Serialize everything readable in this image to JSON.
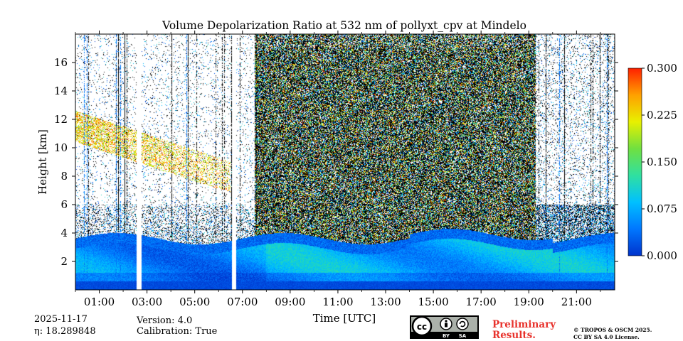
{
  "chart_data": {
    "type": "heatmap",
    "title": "Volume Depolarization Ratio at 532 nm of pollyxt_cpv at Mindelo",
    "xlabel": "Time [UTC]",
    "ylabel": "Height [km]",
    "xlim_hours": [
      0,
      22.6
    ],
    "ylim_km": [
      0,
      18
    ],
    "x_ticks": [
      {
        "h": 1,
        "label": "01:00"
      },
      {
        "h": 3,
        "label": "03:00"
      },
      {
        "h": 5,
        "label": "05:00"
      },
      {
        "h": 7,
        "label": "07:00"
      },
      {
        "h": 9,
        "label": "09:00"
      },
      {
        "h": 11,
        "label": "11:00"
      },
      {
        "h": 13,
        "label": "13:00"
      },
      {
        "h": 15,
        "label": "15:00"
      },
      {
        "h": 17,
        "label": "17:00"
      },
      {
        "h": 19,
        "label": "19:00"
      },
      {
        "h": 21,
        "label": "21:00"
      }
    ],
    "y_ticks": [
      {
        "v": 2,
        "label": "2"
      },
      {
        "v": 4,
        "label": "4"
      },
      {
        "v": 6,
        "label": "6"
      },
      {
        "v": 8,
        "label": "8"
      },
      {
        "v": 10,
        "label": "10"
      },
      {
        "v": 12,
        "label": "12"
      },
      {
        "v": 14,
        "label": "14"
      },
      {
        "v": 16,
        "label": "16"
      }
    ],
    "colorbar": {
      "min": 0.0,
      "max": 0.3,
      "ticks": [
        "0.000",
        "0.075",
        "0.150",
        "0.225",
        "0.300"
      ],
      "colors": [
        "#0033cc",
        "#0077ff",
        "#00c0ff",
        "#30e0a0",
        "#70e040",
        "#e8f000",
        "#ffa000",
        "#ff2000"
      ]
    },
    "data_gaps_hours": [
      [
        2.55,
        2.75
      ],
      [
        6.55,
        6.72
      ]
    ],
    "features": [
      {
        "name": "boundary layer aerosol",
        "height_km": [
          0.3,
          4.2
        ],
        "ratio": 0.08
      },
      {
        "name": "surface layer",
        "height_km": [
          0.0,
          0.6
        ],
        "ratio": 0.02
      },
      {
        "name": "elevated depolarizing layer",
        "height_km": [
          7.5,
          12.2
        ],
        "time_h": [
          0.0,
          6.5
        ],
        "ratio": 0.22
      }
    ]
  },
  "footer": {
    "date": "2025-11-17",
    "eta": "η: 18.289848",
    "version": "Version: 4.0",
    "calibration": "Calibration: True",
    "preliminary_line1": "Preliminary",
    "preliminary_line2": "Results.",
    "license_line1": "© TROPOS & OSCM 2025.",
    "license_line2": "CC BY SA 4.0 License.",
    "cc_badge": "cc",
    "cc_by": "BY",
    "cc_sa": "SA"
  }
}
